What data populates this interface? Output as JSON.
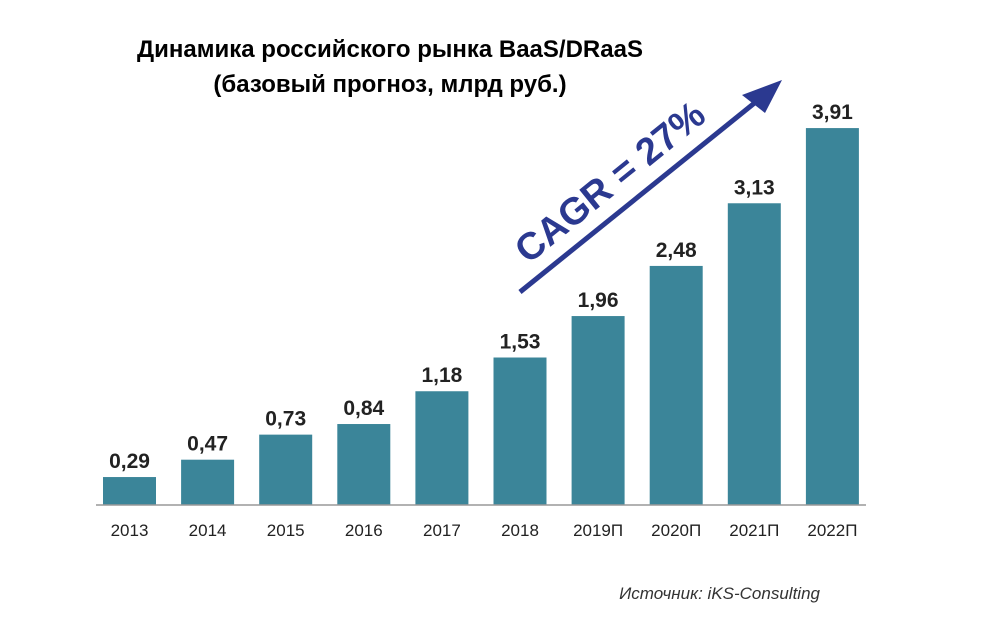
{
  "chart_data": {
    "type": "bar",
    "title": "Динамика российского рынка BaaS/DRaaS",
    "subtitle": "(базовый прогноз, млрд руб.)",
    "categories": [
      "2013",
      "2014",
      "2015",
      "2016",
      "2017",
      "2018",
      "2019П",
      "2020П",
      "2021П",
      "2022П"
    ],
    "values": [
      0.29,
      0.47,
      0.73,
      0.84,
      1.18,
      1.53,
      1.96,
      2.48,
      3.13,
      3.91
    ],
    "value_labels": [
      "0,29",
      "0,47",
      "0,73",
      "0,84",
      "1,18",
      "1,53",
      "1,96",
      "2,48",
      "3,13",
      "3,91"
    ],
    "ylim": [
      0,
      4
    ],
    "grid": false,
    "annotation": "CAGR = 27%",
    "source": "Источник: iKS-Consulting",
    "colors": {
      "bar": "#3b8599",
      "arrow": "#2b3990",
      "axis": "#999999"
    }
  }
}
